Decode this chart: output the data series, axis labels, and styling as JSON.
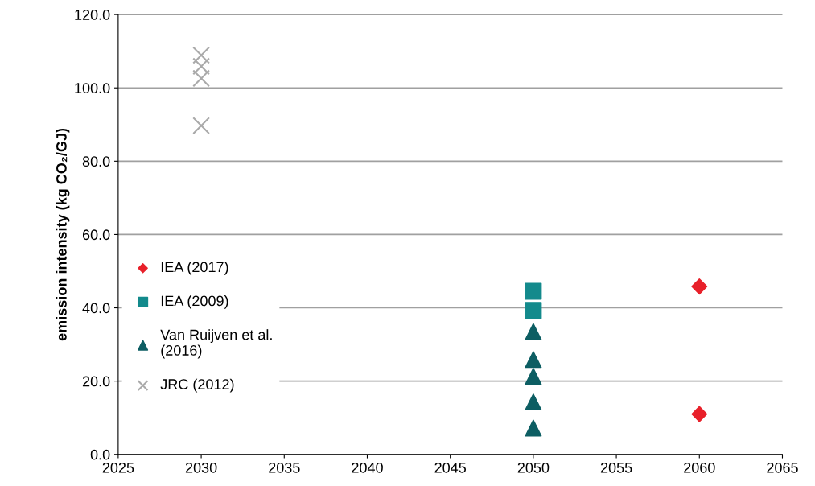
{
  "chart_data": {
    "type": "scatter",
    "ylabel": "emission intensity (kg CO₂/GJ)",
    "xlim": [
      2025,
      2065
    ],
    "xticks": [
      2025,
      2030,
      2035,
      2040,
      2045,
      2050,
      2055,
      2060,
      2065
    ],
    "ylim": [
      0,
      120
    ],
    "yticks": [
      {
        "value": 0,
        "label": "0.0"
      },
      {
        "value": 20,
        "label": "20.0"
      },
      {
        "value": 40,
        "label": "40.0"
      },
      {
        "value": 60,
        "label": "60.0"
      },
      {
        "value": 80,
        "label": "80.0"
      },
      {
        "value": 100,
        "label": "100.0"
      },
      {
        "value": 120,
        "label": "120.0"
      }
    ],
    "grid": "y",
    "legend": "left",
    "series": [
      {
        "name": "IEA (2017)",
        "color": "#e8202a",
        "marker": "diamond",
        "x": [
          2060,
          2060
        ],
        "values": [
          45.8,
          11.0
        ]
      },
      {
        "name": "IEA (2009)",
        "color": "#138a8c",
        "marker": "square",
        "x": [
          2050,
          2050
        ],
        "values": [
          44.5,
          39.3
        ]
      },
      {
        "name": "Van Ruijven et al.\n(2016)",
        "color": "#0d5e63",
        "marker": "triangle",
        "x": [
          2050,
          2050,
          2050,
          2050,
          2050
        ],
        "values": [
          33.5,
          25.9,
          21.3,
          14.3,
          7.2
        ]
      },
      {
        "name": "JRC (2012)",
        "color": "#aaaaaa",
        "marker": "cross",
        "x": [
          2030,
          2030,
          2030,
          2030
        ],
        "values": [
          108.9,
          105.9,
          102.6,
          89.7
        ]
      }
    ]
  }
}
